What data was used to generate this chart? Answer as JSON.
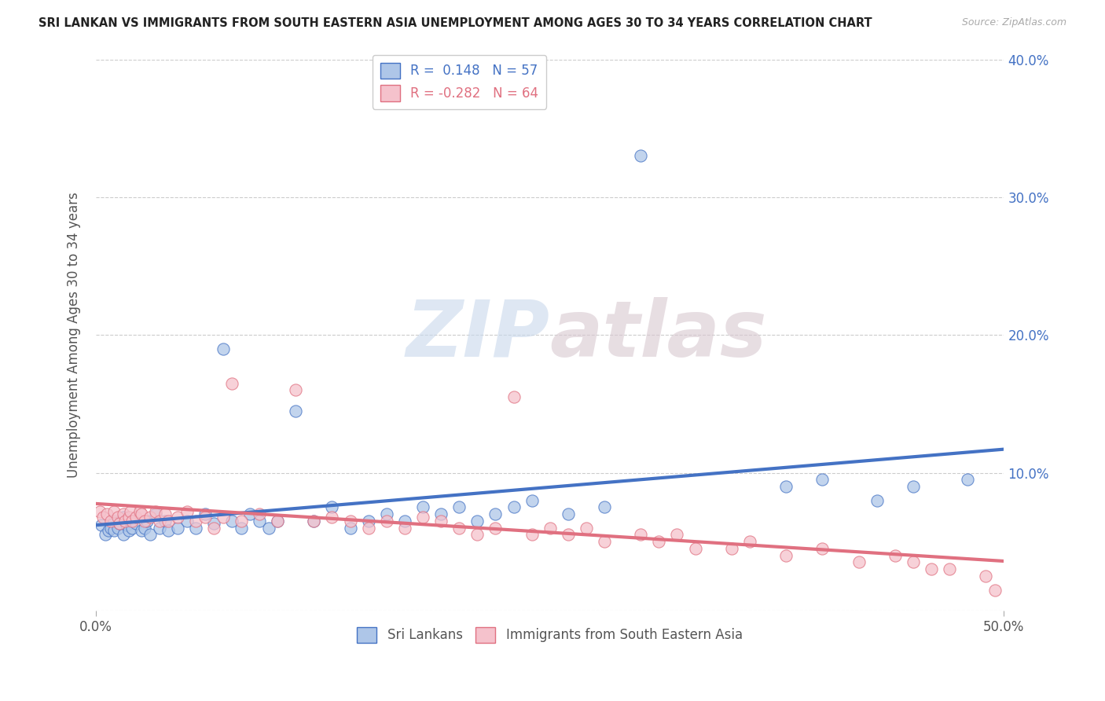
{
  "title": "SRI LANKAN VS IMMIGRANTS FROM SOUTH EASTERN ASIA UNEMPLOYMENT AMONG AGES 30 TO 34 YEARS CORRELATION CHART",
  "source": "Source: ZipAtlas.com",
  "ylabel": "Unemployment Among Ages 30 to 34 years",
  "xmin": 0.0,
  "xmax": 0.5,
  "ymin": 0.0,
  "ymax": 0.4,
  "xticks": [
    0.0,
    0.5
  ],
  "xtick_labels": [
    "0.0%",
    "50.0%"
  ],
  "yticks": [
    0.0,
    0.1,
    0.2,
    0.3,
    0.4
  ],
  "ytick_labels_left": [
    "",
    "",
    "",
    "",
    ""
  ],
  "ytick_labels_right": [
    "",
    "10.0%",
    "20.0%",
    "30.0%",
    "40.0%"
  ],
  "series1_name": "Sri Lankans",
  "series1_color": "#aec6e8",
  "series1_edge_color": "#4472c4",
  "series1_line_color": "#4472c4",
  "series1_R": 0.148,
  "series1_N": 57,
  "series2_name": "Immigrants from South Eastern Asia",
  "series2_color": "#f5c2cc",
  "series2_edge_color": "#e07080",
  "series2_line_color": "#e07080",
  "series2_R": -0.282,
  "series2_N": 64,
  "background_color": "#ffffff",
  "watermark_zip": "ZIP",
  "watermark_atlas": "atlas",
  "grid_color": "#cccccc",
  "series1_x": [
    0.003,
    0.005,
    0.007,
    0.008,
    0.01,
    0.01,
    0.012,
    0.013,
    0.015,
    0.015,
    0.017,
    0.018,
    0.019,
    0.02,
    0.022,
    0.025,
    0.027,
    0.028,
    0.03,
    0.033,
    0.035,
    0.038,
    0.04,
    0.045,
    0.05,
    0.055,
    0.06,
    0.065,
    0.07,
    0.075,
    0.08,
    0.085,
    0.09,
    0.095,
    0.1,
    0.11,
    0.12,
    0.13,
    0.14,
    0.15,
    0.16,
    0.17,
    0.18,
    0.19,
    0.2,
    0.21,
    0.22,
    0.23,
    0.24,
    0.26,
    0.28,
    0.3,
    0.38,
    0.4,
    0.43,
    0.45,
    0.48
  ],
  "series1_y": [
    0.062,
    0.055,
    0.058,
    0.06,
    0.065,
    0.058,
    0.06,
    0.063,
    0.055,
    0.068,
    0.062,
    0.058,
    0.065,
    0.06,
    0.063,
    0.058,
    0.06,
    0.065,
    0.055,
    0.07,
    0.06,
    0.065,
    0.058,
    0.06,
    0.065,
    0.06,
    0.07,
    0.063,
    0.19,
    0.065,
    0.06,
    0.07,
    0.065,
    0.06,
    0.065,
    0.145,
    0.065,
    0.075,
    0.06,
    0.065,
    0.07,
    0.065,
    0.075,
    0.07,
    0.075,
    0.065,
    0.07,
    0.075,
    0.08,
    0.07,
    0.075,
    0.33,
    0.09,
    0.095,
    0.08,
    0.09,
    0.095
  ],
  "series2_x": [
    0.002,
    0.004,
    0.006,
    0.008,
    0.01,
    0.012,
    0.013,
    0.015,
    0.016,
    0.018,
    0.019,
    0.02,
    0.022,
    0.024,
    0.025,
    0.027,
    0.03,
    0.033,
    0.035,
    0.038,
    0.04,
    0.045,
    0.05,
    0.055,
    0.06,
    0.065,
    0.07,
    0.075,
    0.08,
    0.09,
    0.1,
    0.11,
    0.12,
    0.13,
    0.14,
    0.15,
    0.16,
    0.17,
    0.18,
    0.19,
    0.2,
    0.21,
    0.22,
    0.23,
    0.24,
    0.25,
    0.26,
    0.27,
    0.28,
    0.3,
    0.31,
    0.32,
    0.33,
    0.35,
    0.36,
    0.38,
    0.4,
    0.42,
    0.44,
    0.45,
    0.46,
    0.47,
    0.49,
    0.495
  ],
  "series2_y": [
    0.072,
    0.068,
    0.07,
    0.065,
    0.072,
    0.068,
    0.063,
    0.07,
    0.065,
    0.068,
    0.072,
    0.065,
    0.068,
    0.072,
    0.07,
    0.065,
    0.068,
    0.072,
    0.065,
    0.07,
    0.065,
    0.068,
    0.072,
    0.065,
    0.068,
    0.06,
    0.068,
    0.165,
    0.065,
    0.07,
    0.065,
    0.16,
    0.065,
    0.068,
    0.065,
    0.06,
    0.065,
    0.06,
    0.068,
    0.065,
    0.06,
    0.055,
    0.06,
    0.155,
    0.055,
    0.06,
    0.055,
    0.06,
    0.05,
    0.055,
    0.05,
    0.055,
    0.045,
    0.045,
    0.05,
    0.04,
    0.045,
    0.035,
    0.04,
    0.035,
    0.03,
    0.03,
    0.025,
    0.015
  ]
}
